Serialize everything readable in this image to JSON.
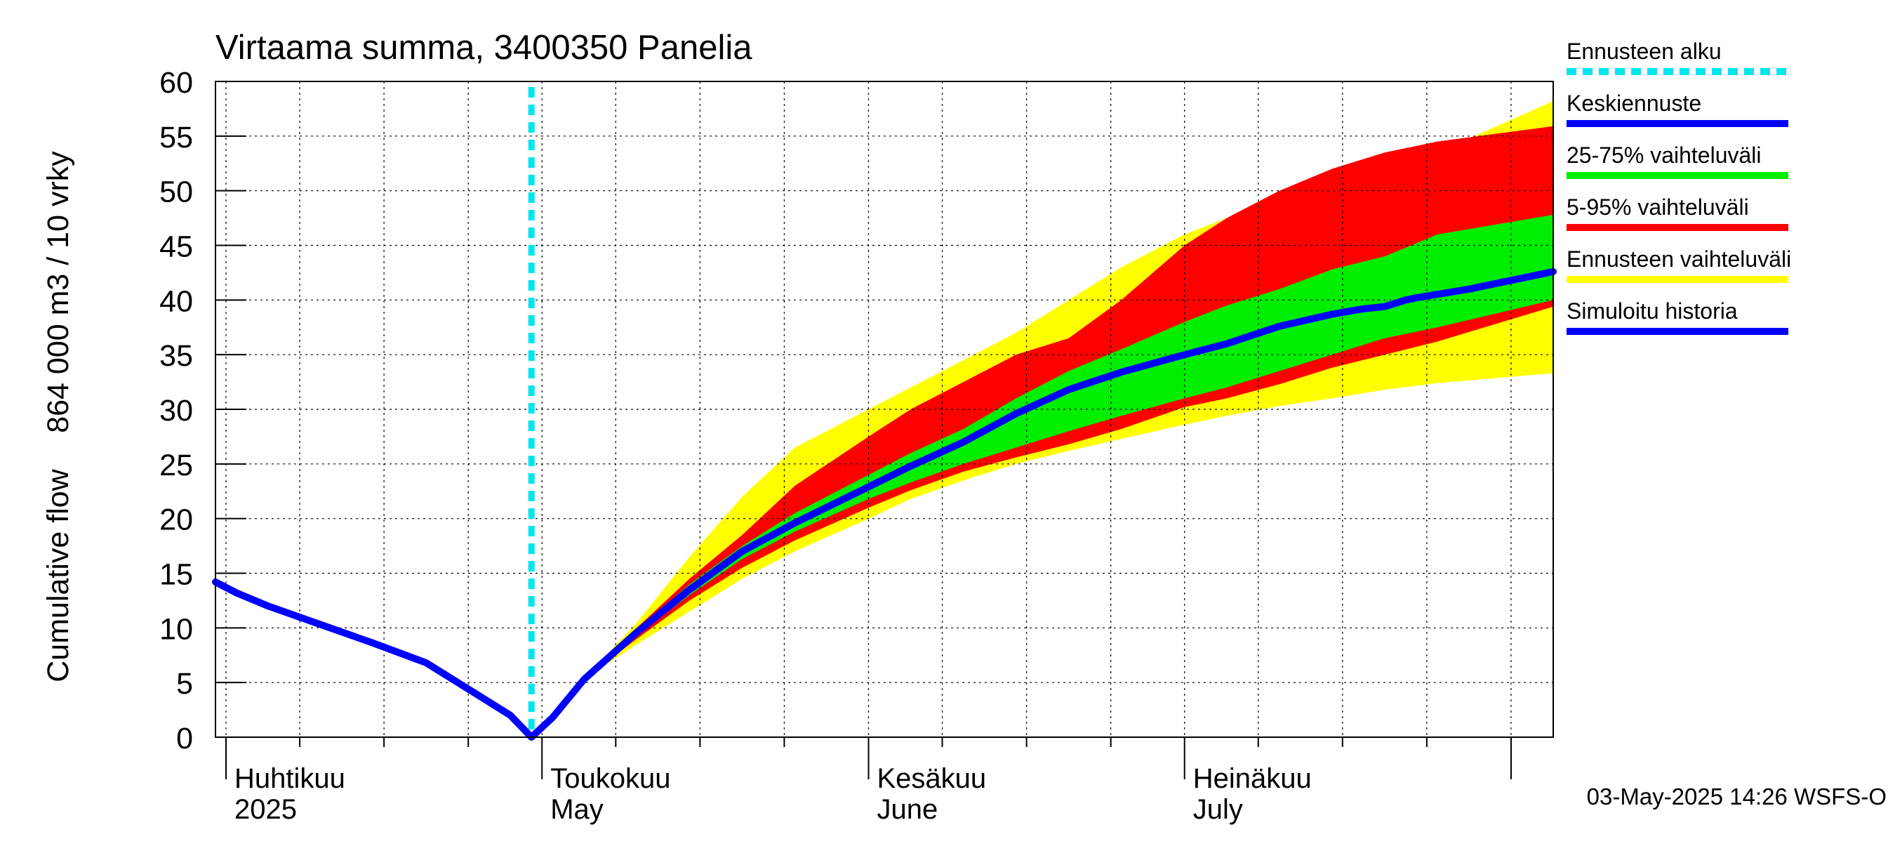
{
  "chart_data": {
    "type": "area",
    "title": "Virtaama summa, 3400350 Panelia",
    "ylabel_lines": [
      "Cumulative flow",
      "864 000 m3 / 10 vrky"
    ],
    "xlabel": "",
    "ylim": [
      0,
      60
    ],
    "xlim": [
      "2025-03-31",
      "2025-08-05"
    ],
    "yticks": [
      0,
      5,
      10,
      15,
      20,
      25,
      30,
      35,
      40,
      45,
      50,
      55,
      60
    ],
    "grid": true,
    "legend_position": "right",
    "colors": {
      "forecast_start": "#00e5ee",
      "mean_forecast": "#0000ff",
      "p25_75": "#00ee00",
      "p5_95": "#ff0000",
      "forecast_range": "#ffff00",
      "simulated_history": "#0000ff",
      "grid": "#000000"
    },
    "month_labels": [
      {
        "line1": "Huhtikuu",
        "line2": "2025",
        "date": "2025-04-01"
      },
      {
        "line1": "Toukokuu",
        "line2": "May",
        "date": "2025-05-01"
      },
      {
        "line1": "Kesäkuu",
        "line2": "June",
        "date": "2025-06-01"
      },
      {
        "line1": "Heinäkuu",
        "line2": "July",
        "date": "2025-07-01"
      }
    ],
    "forecast_start_date": "2025-04-30",
    "legend": [
      {
        "label": "Ennusteen alku",
        "key": "forecast_start",
        "style": "dashed"
      },
      {
        "label": "Keskiennuste",
        "key": "mean_forecast",
        "style": "solid"
      },
      {
        "label": "25-75% vaihteluväli",
        "key": "p25_75",
        "style": "solid"
      },
      {
        "label": "5-95% vaihteluväli",
        "key": "p5_95",
        "style": "solid"
      },
      {
        "label": "Ennusteen vaihteluväli",
        "key": "forecast_range",
        "style": "solid"
      },
      {
        "label": "Simuloitu historia",
        "key": "simulated_history",
        "style": "solid"
      }
    ],
    "series": [
      {
        "name": "Simuloitu historia",
        "x": [
          "2025-03-31",
          "2025-04-02",
          "2025-04-05",
          "2025-04-10",
          "2025-04-15",
          "2025-04-20",
          "2025-04-25",
          "2025-04-28",
          "2025-04-30"
        ],
        "values": [
          14.2,
          13.2,
          12.0,
          10.3,
          8.6,
          6.8,
          3.8,
          2.0,
          0.0
        ]
      },
      {
        "name": "Keskiennuste",
        "x": [
          "2025-04-30",
          "2025-05-02",
          "2025-05-05",
          "2025-05-10",
          "2025-05-15",
          "2025-05-20",
          "2025-05-25",
          "2025-06-01",
          "2025-06-05",
          "2025-06-10",
          "2025-06-15",
          "2025-06-20",
          "2025-06-25",
          "2025-07-01",
          "2025-07-05",
          "2025-07-10",
          "2025-07-15",
          "2025-07-18",
          "2025-07-20",
          "2025-07-22",
          "2025-07-23",
          "2025-07-28",
          "2025-08-05"
        ],
        "values": [
          0.0,
          1.8,
          5.3,
          9.6,
          13.5,
          17.0,
          19.6,
          22.9,
          24.8,
          27.0,
          29.6,
          31.8,
          33.4,
          35.0,
          36.0,
          37.6,
          38.7,
          39.2,
          39.4,
          40.0,
          40.2,
          41.0,
          42.6
        ]
      }
    ],
    "bands": [
      {
        "name": "Ennusteen vaihteluväli",
        "x": [
          "2025-05-05",
          "2025-05-10",
          "2025-05-15",
          "2025-05-20",
          "2025-05-25",
          "2025-06-01",
          "2025-06-05",
          "2025-06-10",
          "2025-06-15",
          "2025-06-20",
          "2025-06-25",
          "2025-07-01",
          "2025-07-05",
          "2025-07-10",
          "2025-07-15",
          "2025-07-20",
          "2025-07-25",
          "2025-08-05"
        ],
        "low": [
          5.3,
          8.5,
          11.5,
          14.5,
          17.0,
          20.0,
          21.8,
          23.5,
          25.0,
          26.2,
          27.3,
          28.6,
          29.4,
          30.3,
          31.0,
          31.8,
          32.4,
          33.3
        ],
        "high": [
          5.3,
          10.5,
          16.5,
          22.0,
          26.5,
          30.0,
          32.0,
          34.5,
          37.0,
          40.0,
          43.0,
          46.0,
          47.5,
          49.0,
          50.5,
          52.0,
          53.5,
          58.2
        ]
      },
      {
        "name": "5-95% vaihteluväli",
        "x": [
          "2025-05-05",
          "2025-05-10",
          "2025-05-15",
          "2025-05-20",
          "2025-05-25",
          "2025-06-01",
          "2025-06-05",
          "2025-06-10",
          "2025-06-15",
          "2025-06-20",
          "2025-06-25",
          "2025-07-01",
          "2025-07-05",
          "2025-07-10",
          "2025-07-15",
          "2025-07-20",
          "2025-07-25",
          "2025-08-05"
        ],
        "low": [
          5.3,
          9.0,
          12.5,
          15.5,
          18.0,
          21.0,
          22.6,
          24.3,
          25.6,
          26.8,
          28.2,
          30.2,
          31.0,
          32.3,
          33.8,
          35.0,
          36.2,
          39.4
        ],
        "high": [
          5.3,
          10.0,
          14.5,
          18.5,
          23.0,
          27.5,
          30.0,
          32.5,
          35.0,
          36.5,
          40.0,
          45.0,
          47.5,
          50.0,
          52.0,
          53.5,
          54.5,
          55.9
        ]
      },
      {
        "name": "25-75% vaihteluväli",
        "x": [
          "2025-05-05",
          "2025-05-10",
          "2025-05-15",
          "2025-05-20",
          "2025-05-25",
          "2025-06-01",
          "2025-06-05",
          "2025-06-10",
          "2025-06-15",
          "2025-06-20",
          "2025-06-25",
          "2025-07-01",
          "2025-07-05",
          "2025-07-10",
          "2025-07-15",
          "2025-07-20",
          "2025-07-25",
          "2025-08-05"
        ],
        "low": [
          5.3,
          9.3,
          13.0,
          16.3,
          18.8,
          21.8,
          23.3,
          25.0,
          26.5,
          28.0,
          29.4,
          31.0,
          32.0,
          33.5,
          35.0,
          36.5,
          37.5,
          40.0
        ],
        "high": [
          5.3,
          9.8,
          14.0,
          17.5,
          20.5,
          24.0,
          26.0,
          28.2,
          31.0,
          33.5,
          35.5,
          38.0,
          39.5,
          41.0,
          42.8,
          44.0,
          46.0,
          47.8
        ]
      }
    ]
  },
  "footer": {
    "timestamp": "03-May-2025 14:26 WSFS-O"
  }
}
